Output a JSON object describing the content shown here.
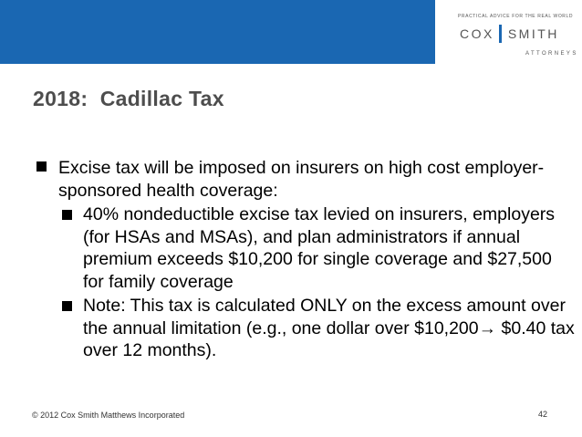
{
  "header": {
    "banner_color": "#1a67b2",
    "logo": {
      "tagline": "PRACTICAL ADVICE FOR THE REAL WORLD",
      "name_left": "COX",
      "name_right": "SMITH",
      "subtitle": "ATTORNEYS"
    }
  },
  "slide": {
    "title": "2018:  Cadillac Tax",
    "bullets": [
      {
        "text": "Excise tax will be imposed on insurers on high cost employer-sponsored health coverage:",
        "sub": [
          {
            "text": "40% nondeductible excise tax levied on insurers, employers (for HSAs and MSAs), and plan administrators if annual premium exceeds $10,200 for single coverage and $27,500 for family coverage"
          },
          {
            "text_before": "Note: This tax is calculated ONLY on the excess amount over the annual limitation (e.g., one dollar over $10,200",
            "arrow": "→",
            "text_after": " $0.40 tax over 12 months)."
          }
        ]
      }
    ]
  },
  "footer": {
    "copyright": "© 2012 Cox Smith Matthews Incorporated",
    "page_number": "42"
  }
}
